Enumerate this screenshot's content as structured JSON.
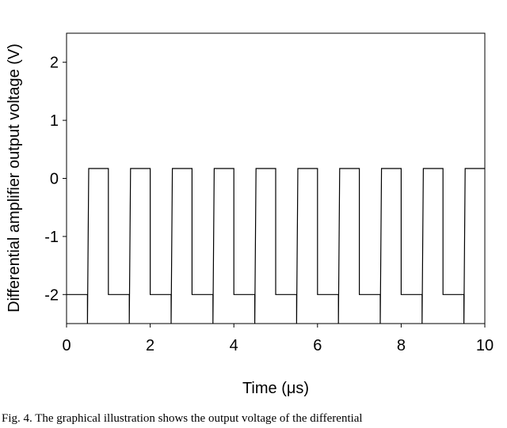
{
  "chart_data": {
    "type": "line",
    "x_label": "Time (μs)",
    "y_label": "Differential amplifier output voltage (V)",
    "caption": "Fig. 4. The graphical illustration shows the output voltage of the differential",
    "x": [
      0,
      0.5,
      0.5,
      0.53,
      1,
      1,
      1.5,
      1.5,
      1.53,
      2,
      2,
      2.5,
      2.5,
      2.53,
      3,
      3,
      3.5,
      3.5,
      3.53,
      4,
      4,
      4.5,
      4.5,
      4.53,
      5,
      5,
      5.5,
      5.5,
      5.53,
      6,
      6,
      6.5,
      6.5,
      6.53,
      7,
      7,
      7.5,
      7.5,
      7.53,
      8,
      8,
      8.5,
      8.5,
      8.53,
      9,
      9,
      9.5,
      9.5,
      9.53,
      10
    ],
    "values": [
      -2,
      -2,
      -2.5,
      0.17,
      0.17,
      -2,
      -2,
      -2.5,
      0.17,
      0.17,
      -2,
      -2,
      -2.5,
      0.17,
      0.17,
      -2,
      -2,
      -2.5,
      0.17,
      0.17,
      -2,
      -2,
      -2.5,
      0.17,
      0.17,
      -2,
      -2,
      -2.5,
      0.17,
      0.17,
      -2,
      -2,
      -2.5,
      0.17,
      0.17,
      -2,
      -2,
      -2.5,
      0.17,
      0.17,
      -2,
      -2,
      -2.5,
      0.17,
      0.17,
      -2,
      -2,
      -2.5,
      0.17,
      0.17
    ],
    "color": "#000000",
    "xlim": [
      0,
      10
    ],
    "xticks": [
      0,
      2,
      4,
      6,
      8,
      10
    ],
    "ylim": [
      -2.5,
      2.5
    ],
    "yticks": [
      -2,
      -1,
      0,
      1,
      2
    ]
  }
}
